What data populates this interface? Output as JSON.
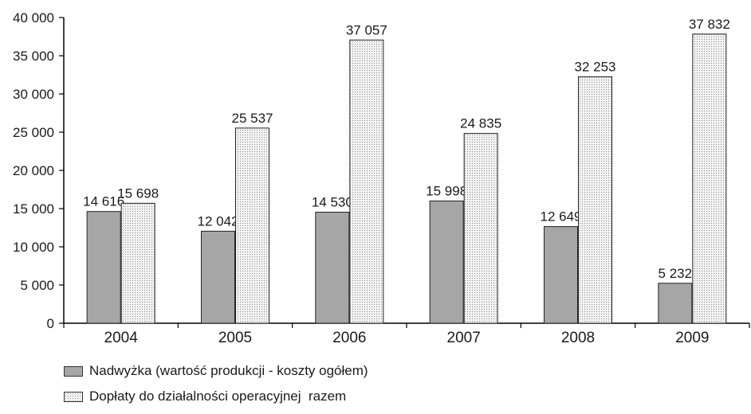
{
  "chart_data": {
    "type": "bar",
    "categories": [
      "2004",
      "2005",
      "2006",
      "2007",
      "2008",
      "2009"
    ],
    "series": [
      {
        "name": "Nadwyżka (wartość produkcji - koszty ogółem)",
        "values": [
          14616,
          12042,
          14530,
          15998,
          12649,
          5232
        ],
        "labels": [
          "14 616",
          "12 042",
          "14 530",
          "15 998",
          "12 649",
          "5 232"
        ],
        "color": "#a6a6a6"
      },
      {
        "name": "Dopłaty do działalności operacyjnej  razem",
        "values": [
          15698,
          25537,
          37057,
          24835,
          32253,
          37832
        ],
        "labels": [
          "15 698",
          "25 537",
          "37 057",
          "24 835",
          "32 253",
          "37 832"
        ],
        "color": "#f4f4f4"
      }
    ],
    "ylim": [
      0,
      40000
    ],
    "yticks": [
      0,
      5000,
      10000,
      15000,
      20000,
      25000,
      30000,
      35000,
      40000
    ],
    "ytick_labels": [
      "0",
      "5 000",
      "10 000",
      "15 000",
      "20 000",
      "25 000",
      "30 000",
      "35 000",
      "40 000"
    ],
    "title": "",
    "xlabel": "",
    "ylabel": "",
    "grid": false,
    "legend_position": "bottom-left"
  }
}
